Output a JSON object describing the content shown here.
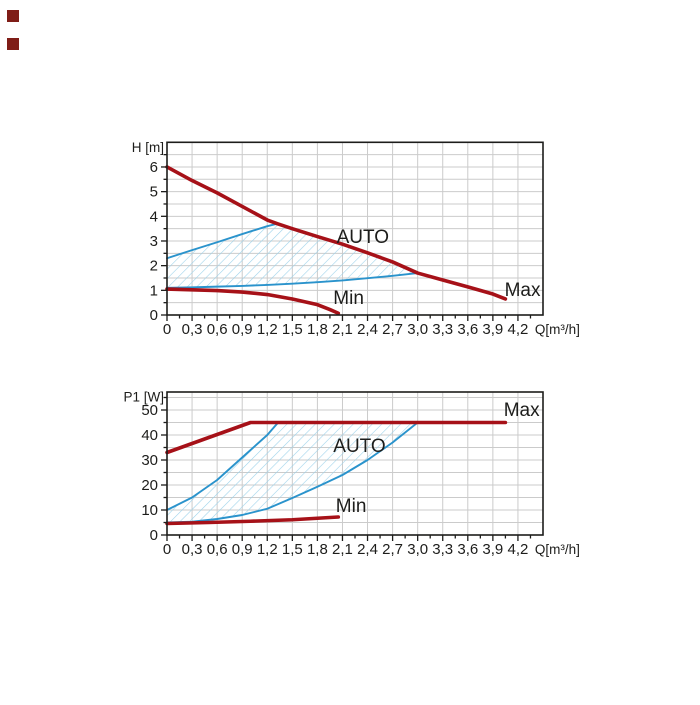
{
  "colors": {
    "background": "#ffffff",
    "curve_red": "#a61118",
    "curve_blue": "#2a93cc",
    "hatch_blue": "#9cd2ea",
    "grid": "#cbcbcb",
    "axis": "#1d1d1b",
    "text": "#1d1d1b",
    "marker_red": "#7f1d17"
  },
  "chart_data": [
    {
      "type": "line",
      "title": "",
      "xlabel": "Q[m³/h]",
      "ylabel": "H [m]",
      "xlim": [
        0,
        4.5
      ],
      "ylim": [
        0,
        7
      ],
      "grid": true,
      "x_tick_values": [
        0,
        0.3,
        0.6,
        0.9,
        1.2,
        1.5,
        1.8,
        2.1,
        2.4,
        2.7,
        3.0,
        3.3,
        3.6,
        3.9,
        4.2
      ],
      "x_tick_labels": [
        "0",
        "0,3",
        "0,6",
        "0,9",
        "1,2",
        "1,5",
        "1,8",
        "2,1",
        "2,4",
        "2,7",
        "3,0",
        "3,3",
        "3,6",
        "3,9",
        "4,2"
      ],
      "y_tick_values": [
        0,
        1,
        2,
        3,
        4,
        5,
        6
      ],
      "y_tick_labels": [
        "0",
        "1",
        "2",
        "3",
        "4",
        "5",
        "6"
      ],
      "x_minor_step": 0.15,
      "y_minor_step": 0.5,
      "grid_x_step": 0.3,
      "grid_y_step": 0.5,
      "series": [
        {
          "name": "Max",
          "role": "max-curve",
          "color": "curve_red",
          "width": 3.6,
          "points": [
            [
              0,
              6.0
            ],
            [
              0.3,
              5.45
            ],
            [
              0.6,
              4.95
            ],
            [
              0.9,
              4.4
            ],
            [
              1.2,
              3.85
            ],
            [
              1.32,
              3.7
            ],
            [
              1.5,
              3.5
            ],
            [
              1.8,
              3.18
            ],
            [
              2.1,
              2.87
            ],
            [
              2.4,
              2.52
            ],
            [
              2.7,
              2.15
            ],
            [
              3.0,
              1.7
            ],
            [
              3.3,
              1.42
            ],
            [
              3.6,
              1.14
            ],
            [
              3.9,
              0.85
            ],
            [
              4.05,
              0.65
            ]
          ]
        },
        {
          "name": "Min",
          "role": "min-curve",
          "color": "curve_red",
          "width": 3.6,
          "points": [
            [
              0,
              1.05
            ],
            [
              0.3,
              1.02
            ],
            [
              0.6,
              0.99
            ],
            [
              0.9,
              0.93
            ],
            [
              1.2,
              0.83
            ],
            [
              1.5,
              0.65
            ],
            [
              1.8,
              0.42
            ],
            [
              1.95,
              0.22
            ],
            [
              2.05,
              0.07
            ]
          ]
        },
        {
          "name": "AUTO upper limit",
          "role": "auto-upper-curve",
          "color": "curve_blue",
          "width": 1.9,
          "points": [
            [
              0,
              2.3
            ],
            [
              0.3,
              2.63
            ],
            [
              0.6,
              2.95
            ],
            [
              0.9,
              3.28
            ],
            [
              1.2,
              3.6
            ],
            [
              1.32,
              3.7
            ]
          ]
        },
        {
          "name": "AUTO lower limit",
          "role": "auto-lower-curve",
          "color": "curve_blue",
          "width": 1.9,
          "points": [
            [
              0,
              1.1
            ],
            [
              0.3,
              1.12
            ],
            [
              0.6,
              1.15
            ],
            [
              0.9,
              1.18
            ],
            [
              1.2,
              1.22
            ],
            [
              1.5,
              1.27
            ],
            [
              1.8,
              1.33
            ],
            [
              2.1,
              1.4
            ],
            [
              2.4,
              1.49
            ],
            [
              2.7,
              1.59
            ],
            [
              3.0,
              1.7
            ]
          ]
        }
      ],
      "auto_region": [
        [
          0,
          2.3
        ],
        [
          0.3,
          2.63
        ],
        [
          0.6,
          2.95
        ],
        [
          0.9,
          3.28
        ],
        [
          1.2,
          3.6
        ],
        [
          1.32,
          3.7
        ],
        [
          1.5,
          3.5
        ],
        [
          1.8,
          3.18
        ],
        [
          2.1,
          2.87
        ],
        [
          2.4,
          2.52
        ],
        [
          2.7,
          2.15
        ],
        [
          3.0,
          1.7
        ],
        [
          2.7,
          1.59
        ],
        [
          2.4,
          1.49
        ],
        [
          2.1,
          1.4
        ],
        [
          1.8,
          1.33
        ],
        [
          1.5,
          1.27
        ],
        [
          1.2,
          1.22
        ],
        [
          0.9,
          1.18
        ],
        [
          0.6,
          1.15
        ],
        [
          0.3,
          1.12
        ],
        [
          0,
          1.1
        ]
      ],
      "annotations": [
        {
          "text": "AUTO",
          "x": 2.03,
          "y": 2.92
        },
        {
          "text": "Max",
          "x": 4.04,
          "y": 0.77
        },
        {
          "text": "Min",
          "x": 1.99,
          "y": 0.45
        }
      ]
    },
    {
      "type": "line",
      "title": "",
      "xlabel": "Q[m³/h]",
      "ylabel": "P1 [W]",
      "xlim": [
        0,
        4.5
      ],
      "ylim": [
        0,
        57.2
      ],
      "grid": true,
      "x_tick_values": [
        0,
        0.3,
        0.6,
        0.9,
        1.2,
        1.5,
        1.8,
        2.1,
        2.4,
        2.7,
        3.0,
        3.3,
        3.6,
        3.9,
        4.2
      ],
      "x_tick_labels": [
        "0",
        "0,3",
        "0,6",
        "0,9",
        "1,2",
        "1,5",
        "1,8",
        "2,1",
        "2,4",
        "2,7",
        "3,0",
        "3,3",
        "3,6",
        "3,9",
        "4,2"
      ],
      "y_tick_values": [
        0,
        10,
        20,
        30,
        40,
        50
      ],
      "y_tick_labels": [
        "0",
        "10",
        "20",
        "30",
        "40",
        "50"
      ],
      "x_minor_step": 0.15,
      "y_minor_step": 5,
      "grid_x_step": 0.3,
      "grid_y_step": 5,
      "series": [
        {
          "name": "Max",
          "role": "max-curve",
          "color": "curve_red",
          "width": 3.6,
          "points": [
            [
              0,
              33
            ],
            [
              1.0,
              45
            ],
            [
              4.05,
              45
            ]
          ]
        },
        {
          "name": "Min",
          "role": "min-curve",
          "color": "curve_red",
          "width": 3.6,
          "points": [
            [
              0,
              4.6
            ],
            [
              0.5,
              5.0
            ],
            [
              1.0,
              5.5
            ],
            [
              1.5,
              6.1
            ],
            [
              2.05,
              7.2
            ]
          ]
        },
        {
          "name": "AUTO upper limit",
          "role": "auto-upper-curve",
          "color": "curve_blue",
          "width": 1.9,
          "points": [
            [
              0,
              10
            ],
            [
              0.3,
              15
            ],
            [
              0.6,
              22
            ],
            [
              0.9,
              31
            ],
            [
              1.2,
              40
            ],
            [
              1.33,
              45
            ]
          ]
        },
        {
          "name": "AUTO lower limit",
          "role": "auto-lower-curve",
          "color": "curve_blue",
          "width": 1.9,
          "points": [
            [
              0,
              5
            ],
            [
              0.3,
              5.3
            ],
            [
              0.6,
              6.4
            ],
            [
              0.9,
              8
            ],
            [
              1.2,
              10.5
            ],
            [
              1.5,
              14.8
            ],
            [
              1.8,
              19.3
            ],
            [
              2.1,
              24
            ],
            [
              2.4,
              30
            ],
            [
              2.7,
              37
            ],
            [
              3.0,
              45
            ]
          ]
        }
      ],
      "auto_region": [
        [
          0,
          10
        ],
        [
          0.3,
          15
        ],
        [
          0.6,
          22
        ],
        [
          0.9,
          31
        ],
        [
          1.2,
          40
        ],
        [
          1.33,
          45
        ],
        [
          3.0,
          45
        ],
        [
          2.7,
          37
        ],
        [
          2.4,
          30
        ],
        [
          2.1,
          24
        ],
        [
          1.8,
          19.3
        ],
        [
          1.5,
          14.8
        ],
        [
          1.2,
          10.5
        ],
        [
          0.9,
          8
        ],
        [
          0.6,
          6.4
        ],
        [
          0.3,
          5.3
        ],
        [
          0,
          5
        ]
      ],
      "annotations": [
        {
          "text": "AUTO",
          "x": 1.99,
          "y": 33.2
        },
        {
          "text": "Max",
          "x": 4.03,
          "y": 47.6
        },
        {
          "text": "Min",
          "x": 2.02,
          "y": 9.2
        }
      ]
    }
  ]
}
